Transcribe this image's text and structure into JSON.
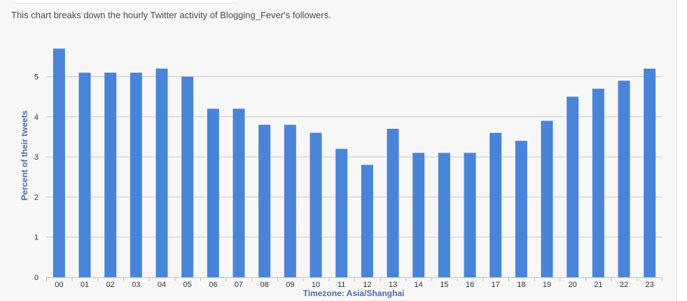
{
  "description": "This chart breaks down the hourly Twitter activity of Blogging_Fever's followers.",
  "colors": {
    "bar": "#4a84d9",
    "grid": "#c8c8c8",
    "axis_title": "#4a6ea9",
    "text": "#4a4a4a"
  },
  "chart_data": {
    "type": "bar",
    "title": "",
    "xlabel": "Timezone: Asia/Shanghai",
    "ylabel": "Percent of their tweets",
    "ylim": [
      0,
      5.8
    ],
    "yticks": [
      "0",
      "1",
      "2",
      "3",
      "4",
      "5"
    ],
    "grid": true,
    "categories": [
      "00",
      "01",
      "02",
      "03",
      "04",
      "05",
      "06",
      "07",
      "08",
      "09",
      "10",
      "11",
      "12",
      "13",
      "14",
      "15",
      "16",
      "17",
      "18",
      "19",
      "20",
      "21",
      "22",
      "23"
    ],
    "values": [
      5.7,
      5.1,
      5.1,
      5.1,
      5.2,
      5.0,
      4.2,
      4.2,
      3.8,
      3.8,
      3.6,
      3.2,
      2.8,
      3.7,
      3.1,
      3.1,
      3.1,
      3.6,
      3.4,
      3.9,
      4.5,
      4.7,
      4.9,
      5.2
    ]
  }
}
